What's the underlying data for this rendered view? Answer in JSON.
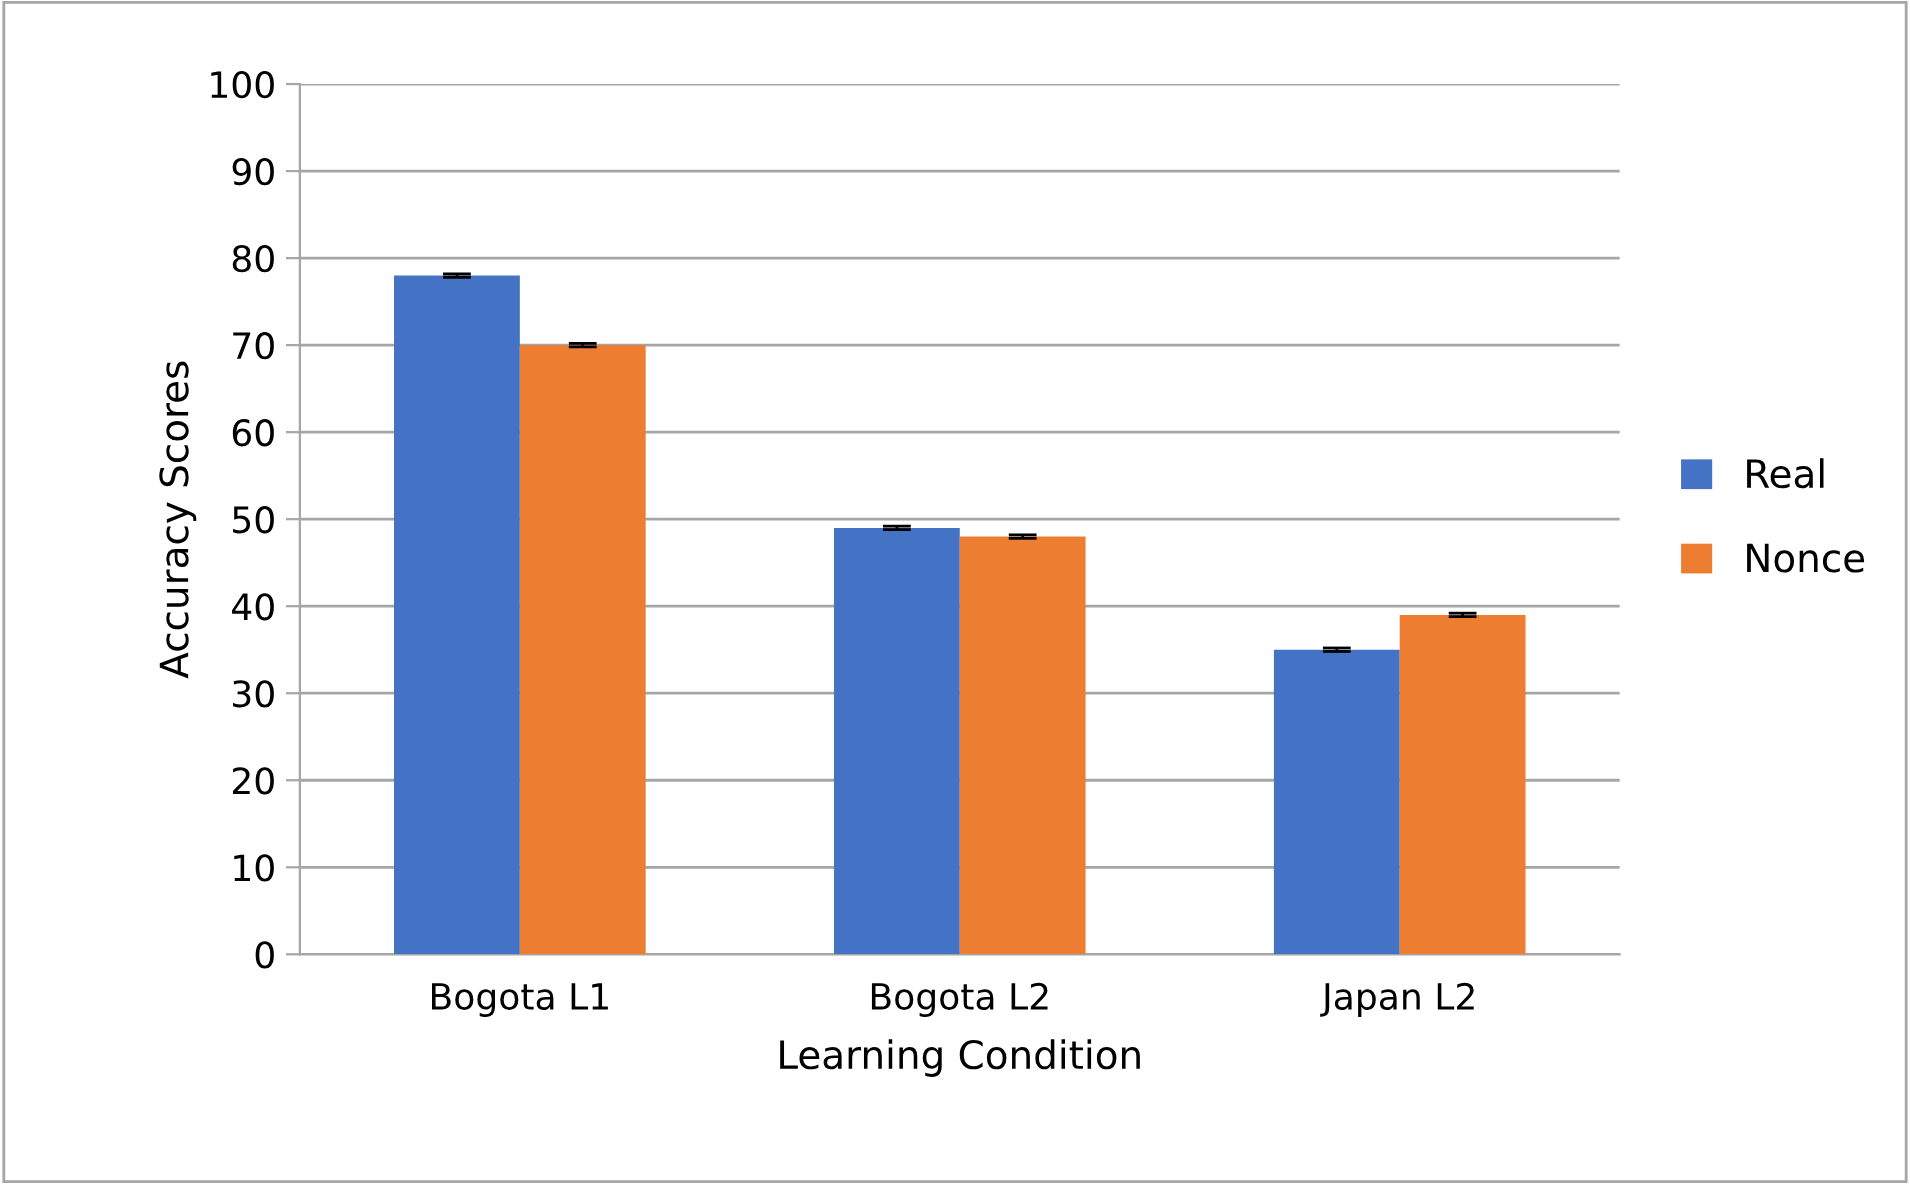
{
  "chart_data": {
    "type": "bar",
    "xlabel": "Learning Condition",
    "ylabel": "Accuracy Scores",
    "categories": [
      "Bogota L1",
      "Bogota L2",
      "Japan L2"
    ],
    "series": [
      {
        "name": "Real",
        "color": "#4472c4",
        "values": [
          78,
          49,
          35
        ],
        "errors": [
          0.2,
          0.2,
          0.2
        ]
      },
      {
        "name": "Nonce",
        "color": "#ed7d31",
        "values": [
          70,
          48,
          39
        ],
        "errors": [
          0.2,
          0.2,
          0.2
        ]
      }
    ],
    "ylim": [
      0,
      100
    ],
    "yticks": [
      0,
      10,
      20,
      30,
      40,
      50,
      60,
      70,
      80,
      90,
      100
    ],
    "grid": "y",
    "legend": "right"
  }
}
